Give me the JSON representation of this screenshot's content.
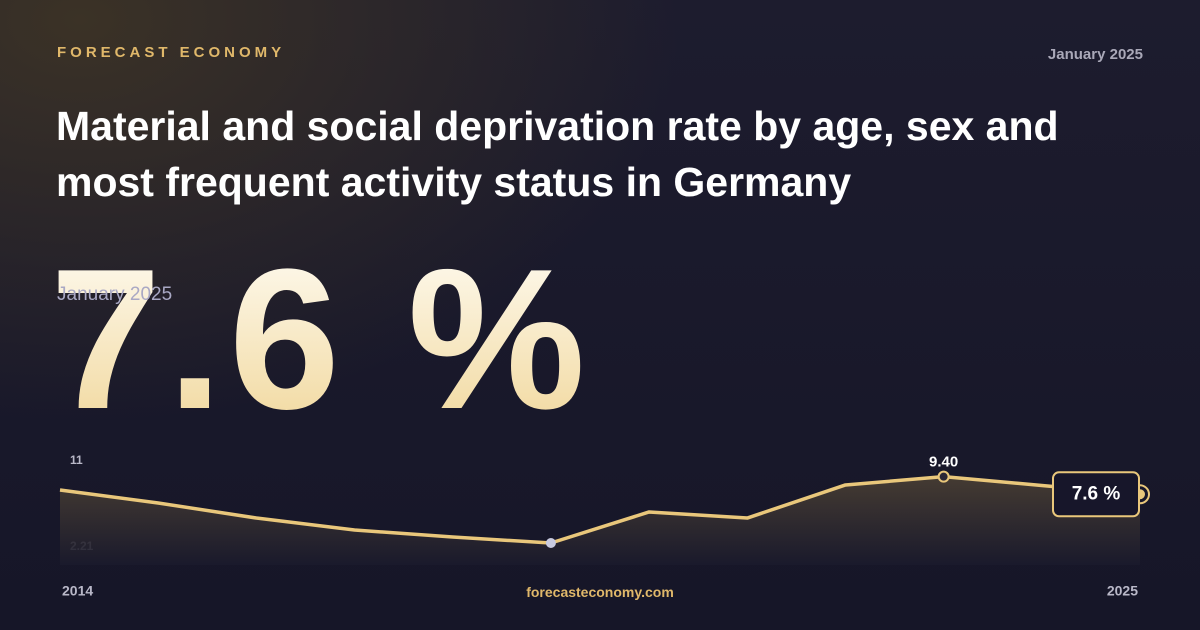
{
  "brand": "FORECAST ECONOMY",
  "date": "January 2025",
  "title": "Material and social deprivation rate by age, sex and most frequent activity status in Germany",
  "headline": {
    "value": "7.6 %",
    "date": "January 2025"
  },
  "footer": "forecasteconomy.com",
  "chart_data": {
    "type": "line",
    "x": [
      2014,
      2015,
      2016,
      2017,
      2018,
      2019,
      2020,
      2021,
      2022,
      2023,
      2024,
      2025
    ],
    "series": [
      {
        "color": "#e9c77b",
        "values": [
          8.04,
          6.71,
          5.17,
          3.95,
          3.23,
          2.62,
          5.79,
          5.17,
          8.55,
          9.4,
          8.5,
          7.6
        ],
        "value_labels": [
          null,
          null,
          null,
          null,
          null,
          null,
          null,
          null,
          null,
          "9.40",
          null,
          "7.6 %"
        ]
      }
    ],
    "xlim": [
      2014,
      2025
    ],
    "xticks": [
      2014,
      2025
    ],
    "ylim": [
      2.21,
      11
    ],
    "yticks": [
      2.21,
      11
    ]
  }
}
